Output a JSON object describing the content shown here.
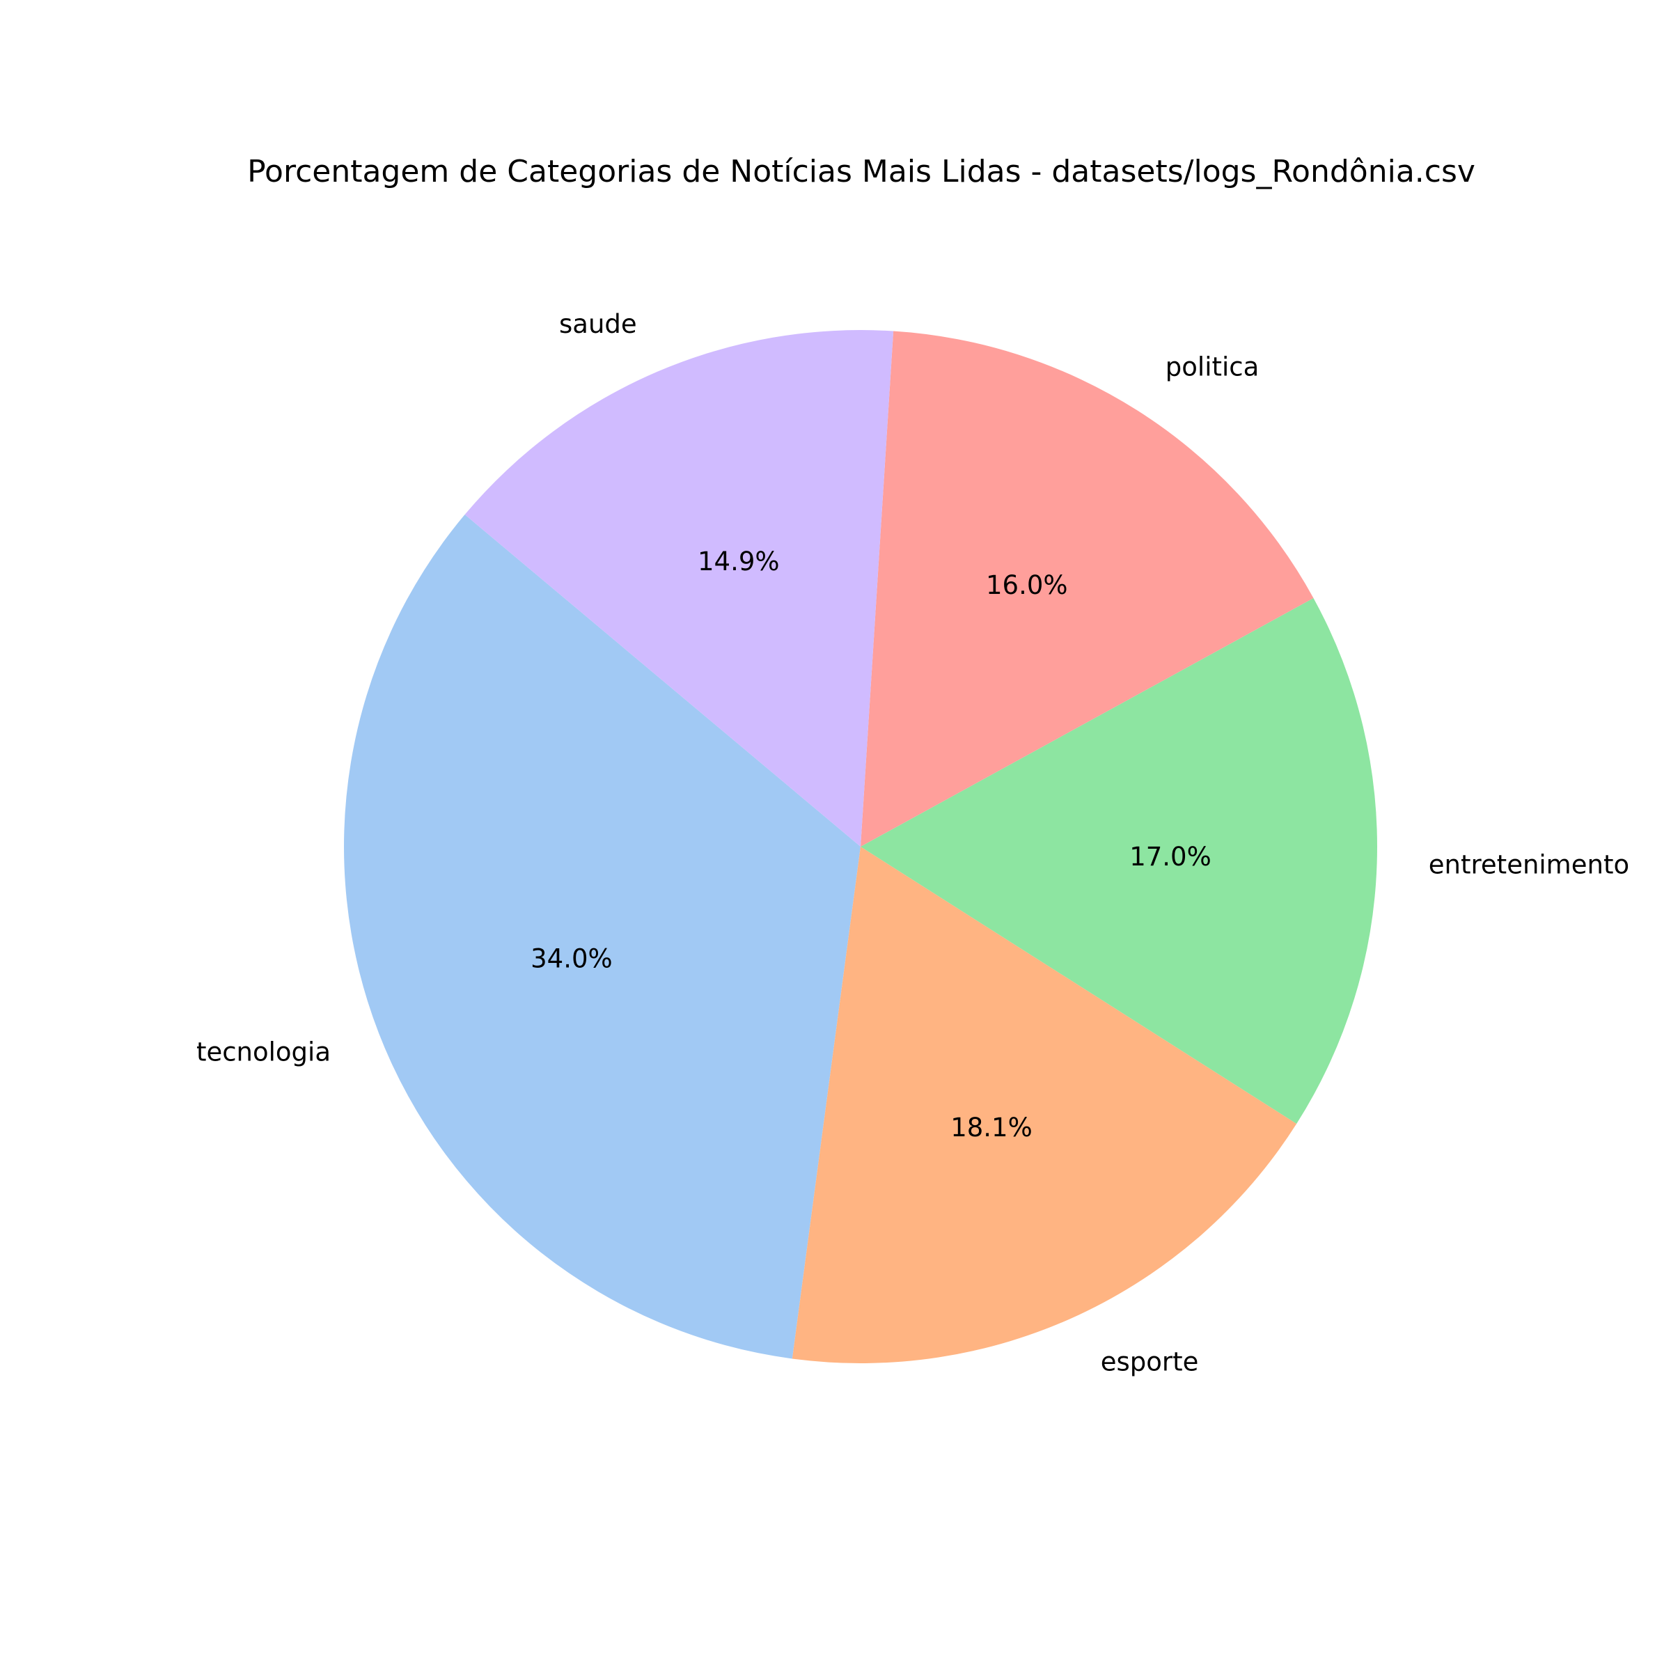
{
  "chart_data": {
    "type": "pie",
    "title": "Porcentagem de Categorias de Notícias Mais Lidas - datasets/logs_Rondônia.csv",
    "categories": [
      "tecnologia",
      "esporte",
      "entretenimento",
      "politica",
      "saude"
    ],
    "values": [
      34.0,
      18.1,
      17.0,
      16.0,
      14.9
    ],
    "value_labels": [
      "34.0%",
      "18.1%",
      "17.0%",
      "16.0%",
      "14.9%"
    ],
    "colors": [
      "#a1c9f4",
      "#ffb482",
      "#8de5a1",
      "#ff9f9b",
      "#d0bbff"
    ],
    "start_angle_deg": 140,
    "direction": "counterclockwise",
    "legend": "none"
  }
}
